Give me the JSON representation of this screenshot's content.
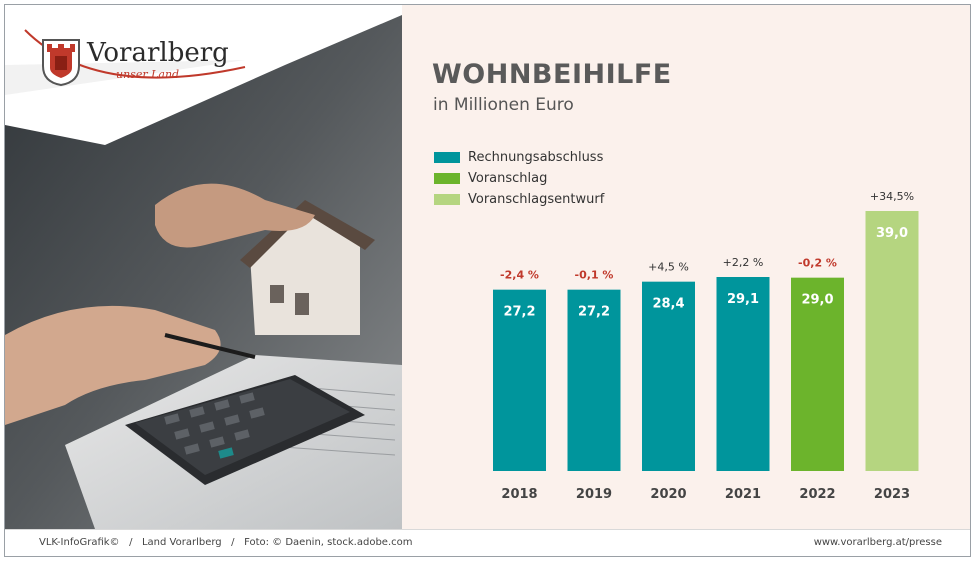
{
  "brand": {
    "name": "Vorarlberg",
    "tagline": "unser Land"
  },
  "footer": {
    "credits": "VLK-InfoGrafik©   /   Land Vorarlberg   /   Foto: © Daenin, stock.adobe.com",
    "url": "www.vorarlberg.at/presse"
  },
  "colors": {
    "Rechnungsabschluss": "#00959c",
    "Voranschlag": "#6cb42c",
    "Voranschlagsentwurf": "#b5d580",
    "negative_change": "#c0392b",
    "positive_change": "#333333",
    "brand_red": "#c0392b"
  },
  "icons": [
    "coat-of-arms-icon"
  ],
  "chart_data": {
    "type": "bar",
    "title": "WOHNBEIHILFE",
    "subtitle": "in Millionen Euro",
    "xlabel": "",
    "ylabel": "",
    "ylim": [
      0,
      39
    ],
    "grid": false,
    "legend_placement": "top-left",
    "legend": [
      "Rechnungsabschluss",
      "Voranschlag",
      "Voranschlagsentwurf"
    ],
    "categories": [
      "2018",
      "2019",
      "2020",
      "2021",
      "2022",
      "2023"
    ],
    "values": [
      27.2,
      27.2,
      28.4,
      29.1,
      29.0,
      39.0
    ],
    "value_labels": [
      "27,2",
      "27,2",
      "28,4",
      "29,1",
      "29,0",
      "39,0"
    ],
    "series_of_bar": [
      "Rechnungsabschluss",
      "Rechnungsabschluss",
      "Rechnungsabschluss",
      "Rechnungsabschluss",
      "Voranschlag",
      "Voranschlagsentwurf"
    ],
    "change_labels": [
      "-2,4 %",
      "-0,1 %",
      "+4,5 %",
      "+2,2 %",
      "-0,2 %",
      "+34,5%"
    ],
    "change_negative": [
      true,
      true,
      false,
      false,
      true,
      false
    ]
  }
}
